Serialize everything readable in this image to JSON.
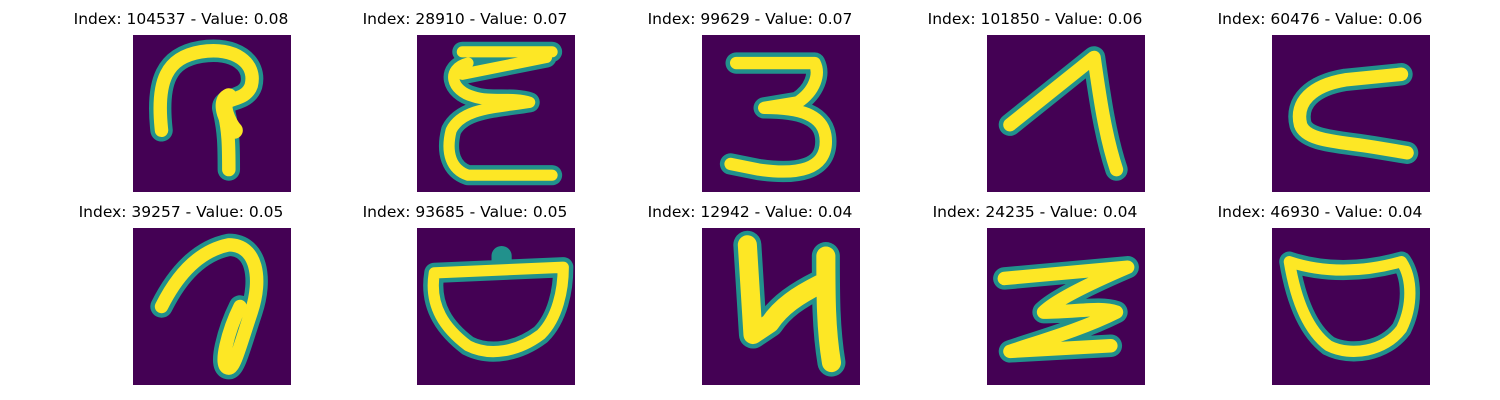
{
  "figure": {
    "background": "#ffffff",
    "colormap": "viridis",
    "image_background": "#440154",
    "stroke_color": "#fde725",
    "edge_color": "#21918c",
    "panels": [
      {
        "index": "104537",
        "value": "0.08",
        "title": "Index: 104537 - Value: 0.08",
        "glyph": "curl-tail-icon"
      },
      {
        "index": "28910",
        "value": "0.07",
        "title": "Index: 28910 - Value: 0.07",
        "glyph": "zigzag-e-icon"
      },
      {
        "index": "99629",
        "value": "0.07",
        "title": "Index: 99629 - Value: 0.07",
        "glyph": "digit-three-icon"
      },
      {
        "index": "101850",
        "value": "0.06",
        "title": "Index: 101850 - Value: 0.06",
        "glyph": "digit-one-icon"
      },
      {
        "index": "60476",
        "value": "0.06",
        "title": "Index: 60476 - Value: 0.06",
        "glyph": "sideways-u-icon"
      },
      {
        "index": "39257",
        "value": "0.05",
        "title": "Index: 39257 - Value: 0.05",
        "glyph": "loop-hook-icon"
      },
      {
        "index": "93685",
        "value": "0.05",
        "title": "Index: 93685 - Value: 0.05",
        "glyph": "bowl-icon"
      },
      {
        "index": "12942",
        "value": "0.04",
        "title": "Index: 12942 - Value: 0.04",
        "glyph": "digit-four-icon"
      },
      {
        "index": "24235",
        "value": "0.04",
        "title": "Index: 24235 - Value: 0.04",
        "glyph": "z-stroke-icon"
      },
      {
        "index": "46930",
        "value": "0.04",
        "title": "Index: 46930 - Value: 0.04",
        "glyph": "cup-icon"
      }
    ]
  }
}
